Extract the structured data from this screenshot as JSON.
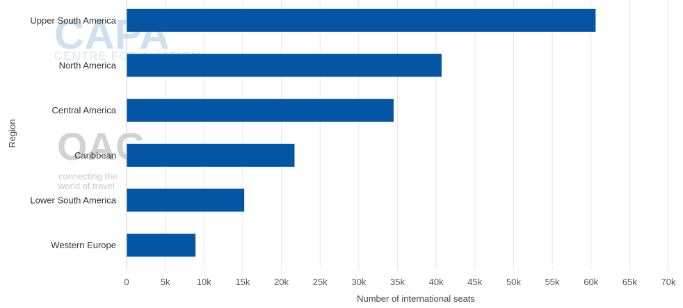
{
  "chart_data": {
    "type": "bar",
    "orientation": "horizontal",
    "categories": [
      "Upper South America",
      "North America",
      "Central America",
      "Caribbean",
      "Lower South America",
      "Western Europe"
    ],
    "values": [
      60600,
      40700,
      34500,
      21700,
      15200,
      8900
    ],
    "bar_color": "#0455a4",
    "xlabel": "Number of international seats",
    "ylabel": "Region",
    "xlim": [
      0,
      70000
    ],
    "xticks": [
      0,
      5000,
      10000,
      15000,
      20000,
      25000,
      30000,
      35000,
      40000,
      45000,
      50000,
      55000,
      60000,
      65000,
      70000
    ],
    "xtick_labels": [
      "0",
      "5k",
      "10k",
      "15k",
      "20k",
      "25k",
      "30k",
      "35k",
      "40k",
      "45k",
      "50k",
      "55k",
      "60k",
      "65k",
      "70k"
    ],
    "grid": "vertical"
  },
  "watermarks": {
    "capa_logo": "CAPA",
    "capa_sub": "CENTRE FOR AVIATION",
    "oag_logo": "OAG",
    "oag_tag_line1": "connecting the",
    "oag_tag_line2": "world of travel"
  }
}
